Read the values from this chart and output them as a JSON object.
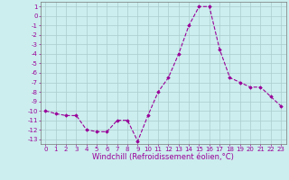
{
  "x": [
    0,
    1,
    2,
    3,
    4,
    5,
    6,
    7,
    8,
    9,
    10,
    11,
    12,
    13,
    14,
    15,
    16,
    17,
    18,
    19,
    20,
    21,
    22,
    23
  ],
  "y": [
    -10.0,
    -10.3,
    -10.5,
    -10.5,
    -12.0,
    -12.2,
    -12.2,
    -11.0,
    -11.0,
    -13.2,
    -10.5,
    -8.0,
    -6.5,
    -4.0,
    -1.0,
    1.0,
    1.0,
    -3.5,
    -6.5,
    -7.0,
    -7.5,
    -7.5,
    -8.5,
    -9.5
  ],
  "line_color": "#990099",
  "marker": "D",
  "marker_size": 1.8,
  "bg_color": "#cceeee",
  "grid_color": "#aacccc",
  "xlabel": "Windchill (Refroidissement éolien,°C)",
  "xlabel_fontsize": 6.0,
  "tick_fontsize": 5.0,
  "ylim": [
    -13.5,
    1.5
  ],
  "xlim": [
    -0.5,
    23.5
  ],
  "yticks": [
    1,
    0,
    -1,
    -2,
    -3,
    -4,
    -5,
    -6,
    -7,
    -8,
    -9,
    -10,
    -11,
    -12,
    -13
  ],
  "xticks": [
    0,
    1,
    2,
    3,
    4,
    5,
    6,
    7,
    8,
    9,
    10,
    11,
    12,
    13,
    14,
    15,
    16,
    17,
    18,
    19,
    20,
    21,
    22,
    23
  ],
  "linewidth": 0.8,
  "spine_color": "#777777"
}
